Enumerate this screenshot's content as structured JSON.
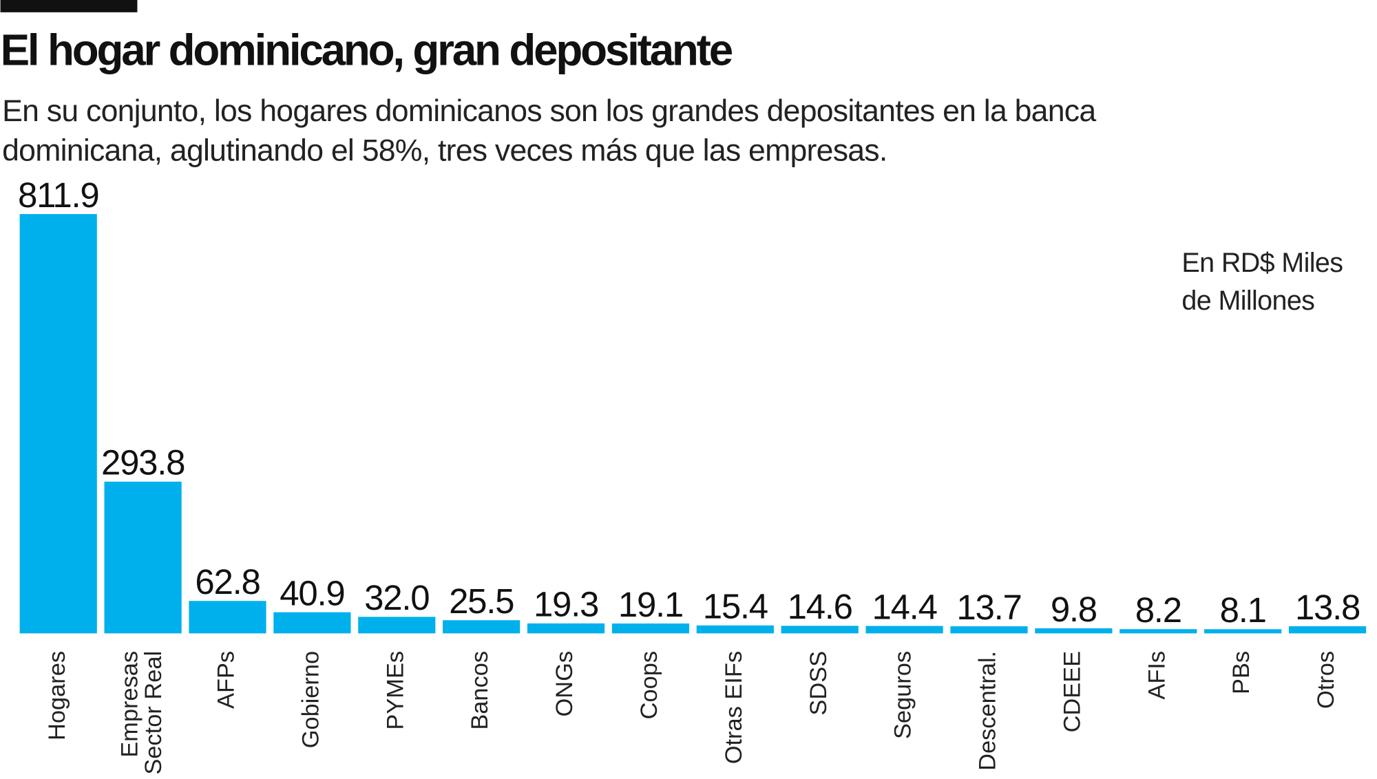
{
  "chart_data": {
    "type": "bar",
    "title": "El hogar dominicano, gran depositante",
    "subtitle": "En su conjunto, los hogares dominicanos son los grandes depositantes en la banca dominicana, aglutinando el 58%, tres veces más que las empresas.",
    "note": "En RD$ Miles de Millones",
    "categories": [
      "Hogares",
      "Empresas Sector Real",
      "AFPs",
      "Gobierno",
      "PYMEs",
      "Bancos",
      "ONGs",
      "Coops",
      "Otras EIFs",
      "SDSS",
      "Seguros",
      "Descentral.",
      "CDEEE",
      "AFIs",
      "PBs",
      "Otros"
    ],
    "values": [
      811.9,
      293.8,
      62.8,
      40.9,
      32.0,
      25.5,
      19.3,
      19.1,
      15.4,
      14.6,
      14.4,
      13.7,
      9.8,
      8.2,
      8.1,
      13.8
    ],
    "value_labels": [
      "811.9",
      "293.8",
      "62.8",
      "40.9",
      "32.0",
      "25.5",
      "19.3",
      "19.1",
      "15.4",
      "14.6",
      "14.4",
      "13.7",
      "9.8",
      "8.2",
      "8.1",
      "13.8"
    ],
    "color": "#00b0ec"
  }
}
